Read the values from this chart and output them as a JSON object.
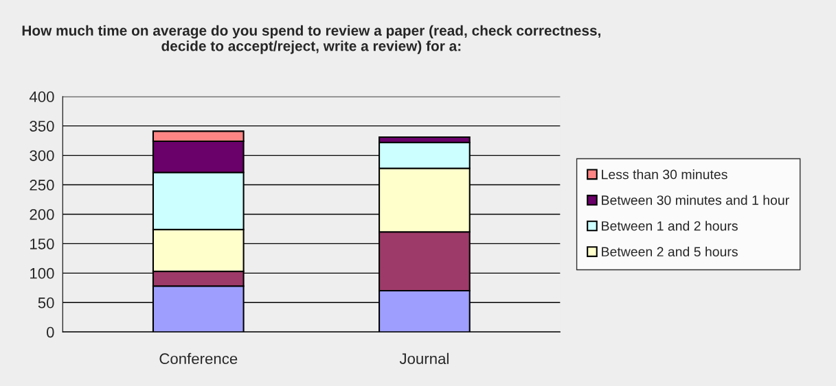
{
  "chart_data": {
    "type": "bar",
    "stacked": true,
    "title": "How much time on average do you spend to review a paper (read, check correctness, decide to accept/reject, write a review) for a:",
    "categories": [
      "Conference",
      "Journal"
    ],
    "series": [
      {
        "color": "#9e9eff",
        "values": [
          78,
          70
        ]
      },
      {
        "color": "#9e3a69",
        "values": [
          25,
          100
        ]
      },
      {
        "name": "Between 2 and 5 hours",
        "color": "#ffffcc",
        "values": [
          71,
          108
        ]
      },
      {
        "name": "Between 1 and 2 hours",
        "color": "#ccffff",
        "values": [
          97,
          44
        ]
      },
      {
        "name": "Between 30 minutes and 1 hour",
        "color": "#6a0069",
        "values": [
          53,
          9
        ]
      },
      {
        "name": "Less than 30 minutes",
        "color": "#ff8585",
        "values": [
          17,
          null
        ]
      }
    ],
    "ylim": [
      0,
      400
    ],
    "yticks": [
      0,
      50,
      100,
      150,
      200,
      250,
      300,
      350,
      400
    ],
    "grid": "y",
    "legend": "right"
  }
}
